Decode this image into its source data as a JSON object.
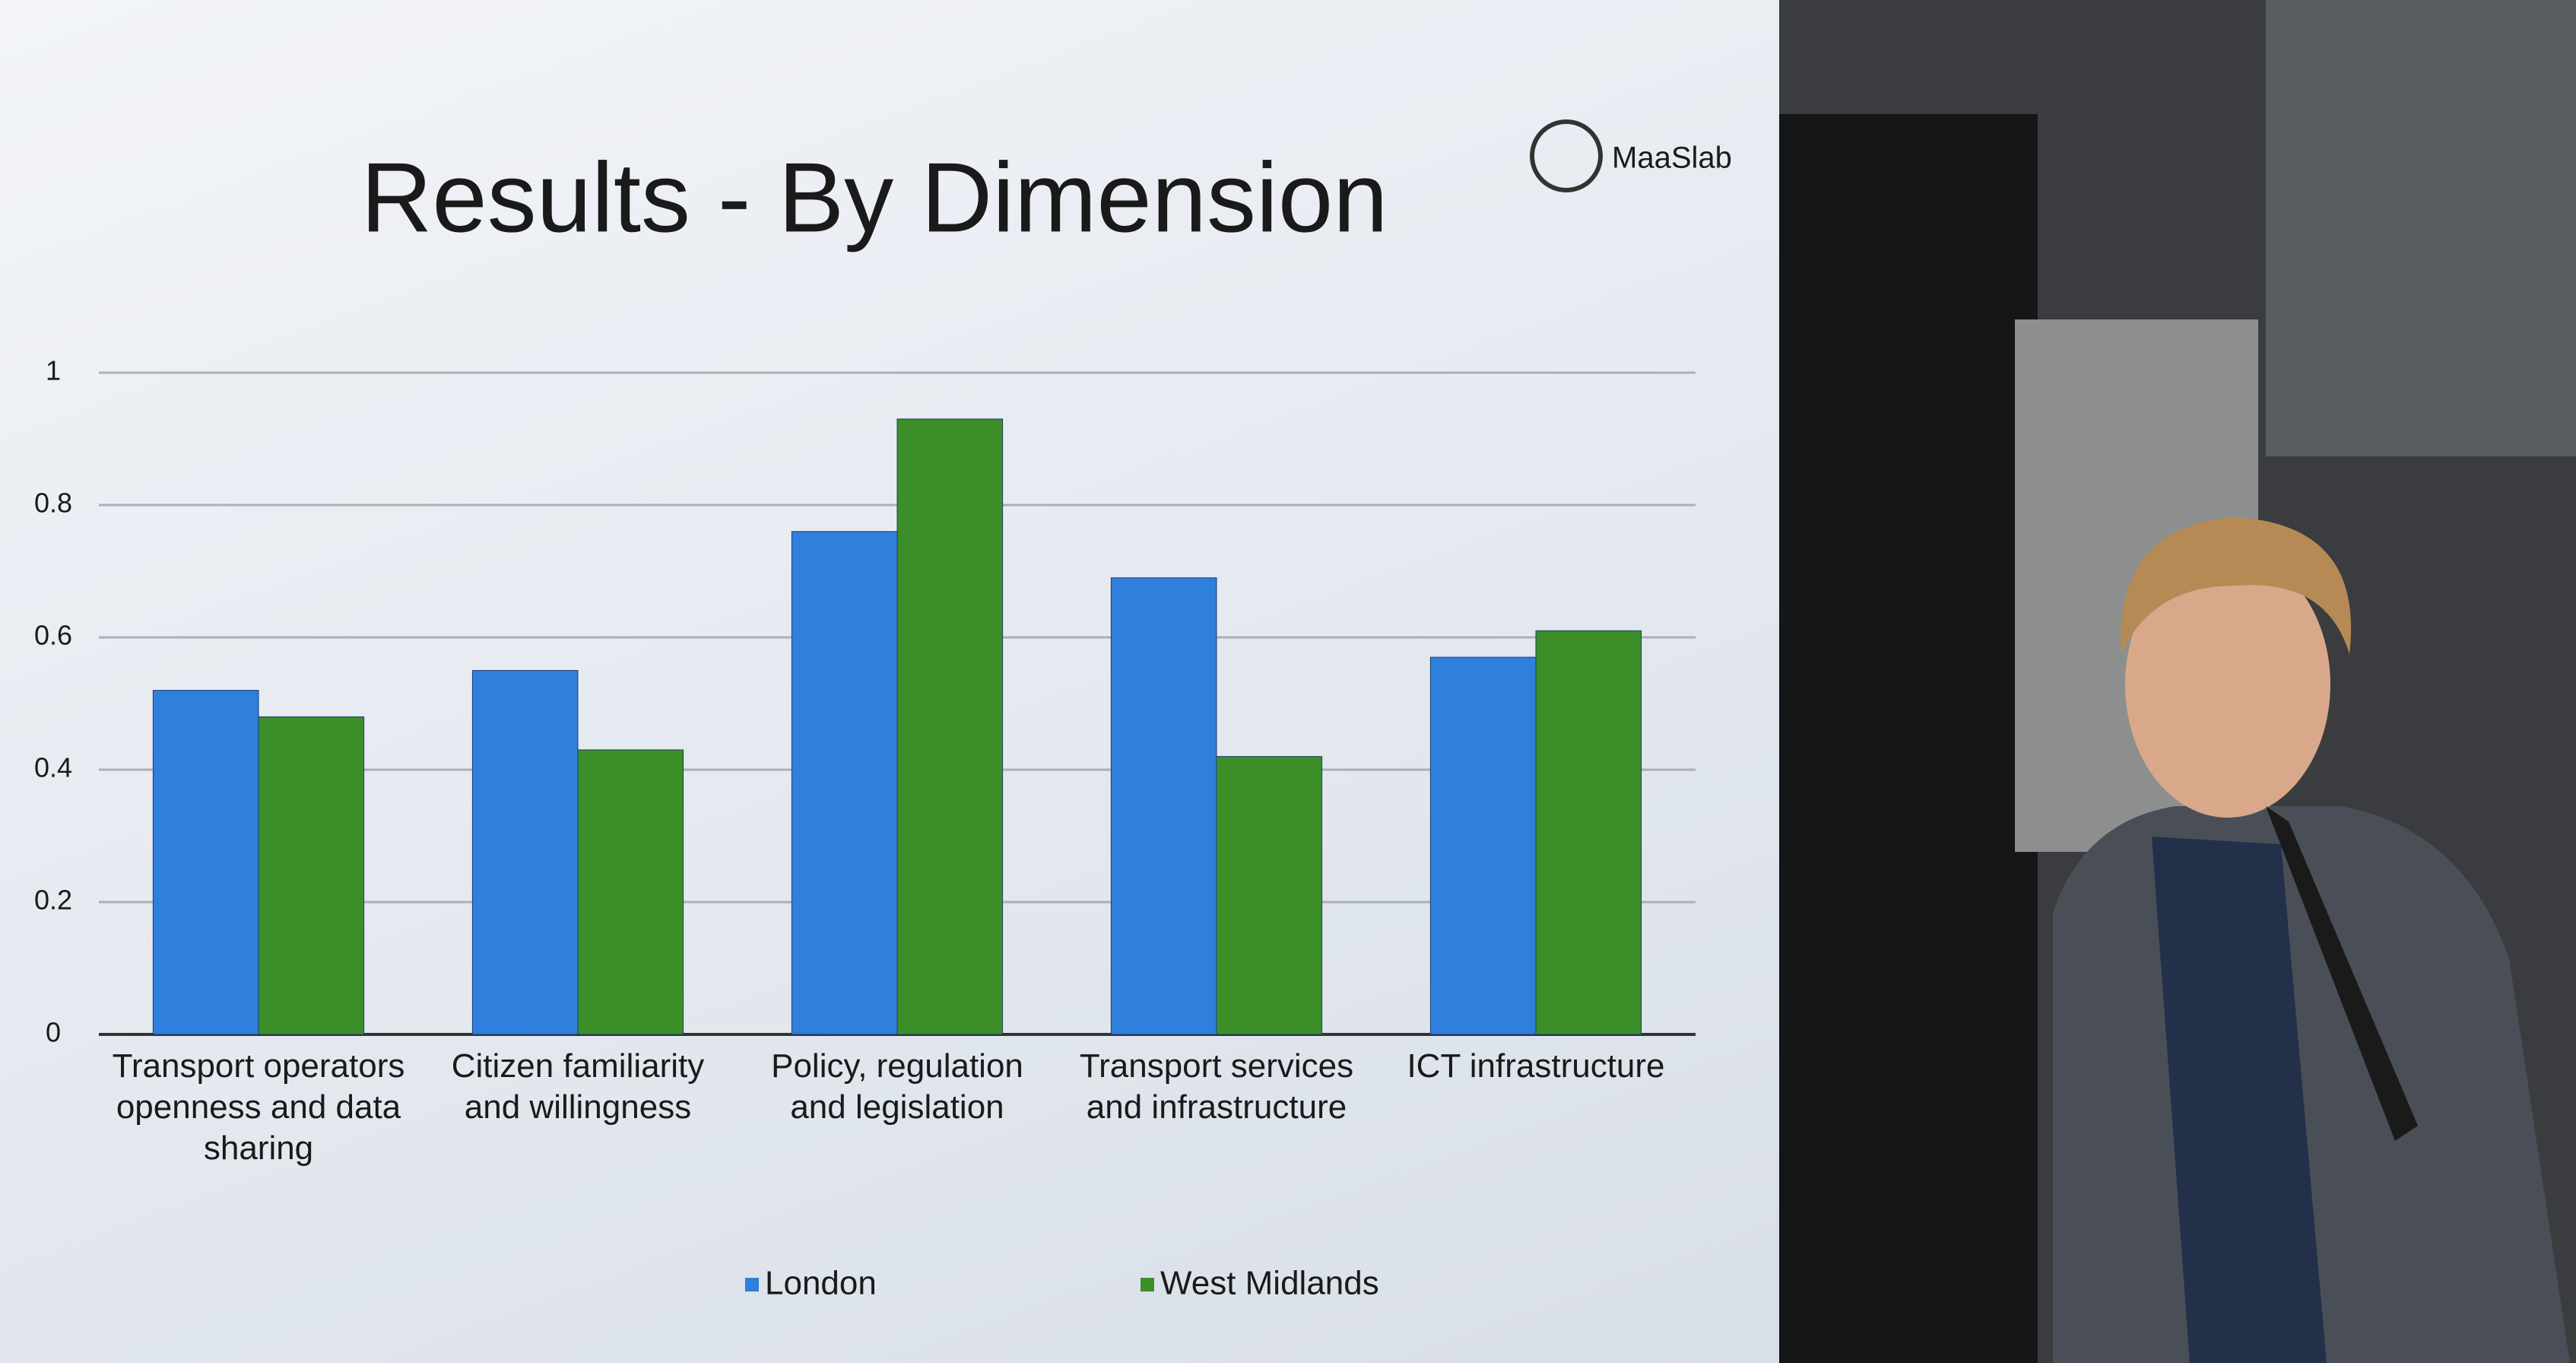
{
  "chart_data": {
    "type": "bar",
    "title": "Results - By Dimension",
    "logo": "MaaSlab",
    "categories": [
      "Transport operators openness and data sharing",
      "Citizen familiarity and willingness",
      "Policy, regulation and legislation",
      "Transport services and infrastructure",
      "ICT infrastructure"
    ],
    "series": [
      {
        "name": "London",
        "color": "#2f7fdc",
        "values": [
          0.52,
          0.55,
          0.76,
          0.69,
          0.57
        ]
      },
      {
        "name": "West Midlands",
        "color": "#3c8f28",
        "values": [
          0.48,
          0.43,
          0.93,
          0.42,
          0.61
        ]
      }
    ],
    "ylim": [
      0,
      1
    ],
    "yticks": [
      0,
      0.2,
      0.4,
      0.6,
      0.8,
      1
    ],
    "grid": true,
    "legend": "bottom"
  }
}
